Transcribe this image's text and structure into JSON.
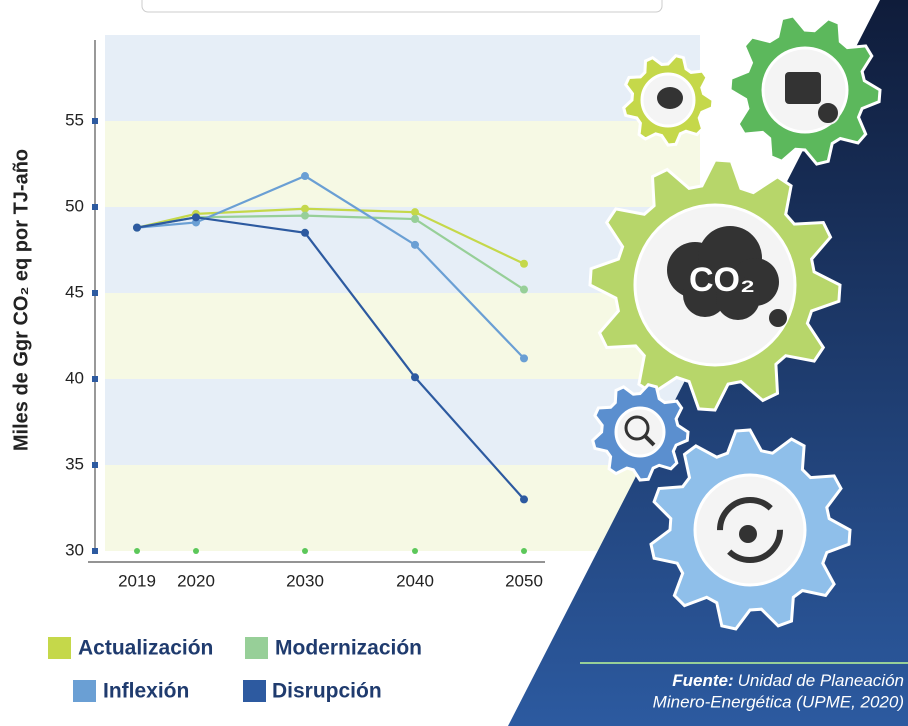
{
  "chart_data": {
    "type": "line",
    "y_label": "Miles de Ggr CO₂ eq por TJ-año",
    "categories": [
      "2019",
      "2020",
      "2030",
      "2040",
      "2050"
    ],
    "series": [
      {
        "name": "Actualización",
        "color": "#c5d84a",
        "values": [
          48.8,
          49.6,
          49.9,
          49.7,
          46.7
        ]
      },
      {
        "name": "Modernización",
        "color": "#97cf98",
        "values": [
          48.8,
          49.4,
          49.5,
          49.3,
          45.2
        ]
      },
      {
        "name": "Inflexión",
        "color": "#6a9fd4",
        "values": [
          48.8,
          49.1,
          51.8,
          47.8,
          41.2
        ]
      },
      {
        "name": "Disrupción",
        "color": "#2d5aa0",
        "values": [
          48.8,
          49.4,
          48.5,
          40.1,
          33.0
        ]
      }
    ],
    "ylim": [
      30,
      60
    ],
    "yticks": [
      30,
      35,
      40,
      45,
      50,
      55
    ],
    "source_label": "Fuente:",
    "source_text": "Unidad de Planeación Minero-Energética (UPME, 2020)",
    "icon_label": "CO₂"
  }
}
